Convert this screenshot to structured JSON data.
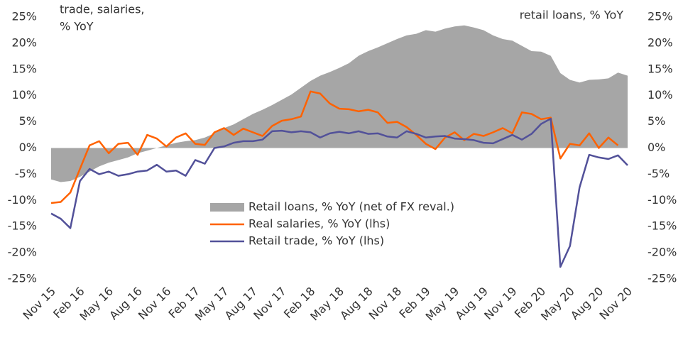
{
  "chart_data": {
    "type": "line",
    "left_axis_label": [
      "trade, salaries,",
      "% YoY"
    ],
    "right_axis_label": "retail loans, % YoY",
    "categories": [
      "Nov 15",
      null,
      null,
      "Feb 16",
      null,
      null,
      "May 16",
      null,
      null,
      "Aug 16",
      null,
      null,
      "Nov 16",
      null,
      null,
      "Feb 17",
      null,
      null,
      "May 17",
      null,
      null,
      "Aug 17",
      null,
      null,
      "Nov 17",
      null,
      null,
      "Feb 18",
      null,
      null,
      "May 18",
      null,
      null,
      "Aug 18",
      null,
      null,
      "Nov 18",
      null,
      null,
      "Feb 19",
      null,
      null,
      "May 19",
      null,
      null,
      "Aug 19",
      null,
      null,
      "Nov 19",
      null,
      null,
      "Feb 20",
      null,
      null,
      "May 20",
      null,
      null,
      "Aug 20",
      null,
      null,
      "Nov 20"
    ],
    "series": [
      {
        "name": "Retail loans, % YoY (net of FX reval.)",
        "color": "#a6a6a6",
        "kind": "area",
        "axis": "y2",
        "values": [
          -6,
          -6.5,
          -6.3,
          -5.5,
          -4.5,
          -3.5,
          -2.8,
          -2.3,
          -1.8,
          -1,
          -0.5,
          0,
          0.5,
          1,
          1.3,
          1.5,
          2,
          2.8,
          3.8,
          4.5,
          5.5,
          6.5,
          7.3,
          8.2,
          9.2,
          10.2,
          11.5,
          12.8,
          13.8,
          14.5,
          15.3,
          16.2,
          17.6,
          18.5,
          19.2,
          20,
          20.8,
          21.5,
          21.8,
          22.5,
          22.2,
          22.8,
          23.2,
          23.4,
          23,
          22.5,
          21.5,
          20.8,
          20.5,
          19.5,
          18.5,
          18.4,
          17.6,
          14.3,
          13,
          12.5,
          13,
          13.1,
          13.3,
          14.4,
          13.8
        ]
      },
      {
        "name": "Real salaries, % YoY (lhs)",
        "color": "#ff6200",
        "kind": "line",
        "values": [
          -10.5,
          -10.3,
          -8.5,
          -4,
          0.5,
          1.3,
          -1,
          0.8,
          1,
          -1.3,
          2.5,
          1.8,
          0.3,
          2,
          2.8,
          0.8,
          0.6,
          3,
          3.8,
          2.5,
          3.7,
          3,
          2.3,
          4.2,
          5.2,
          5.5,
          6,
          10.8,
          10.4,
          8.5,
          7.5,
          7.4,
          7,
          7.3,
          6.8,
          4.8,
          5,
          4,
          2.5,
          0.8,
          -0.2,
          2,
          3,
          1.5,
          2.7,
          2.3,
          3,
          3.8,
          2.8,
          6.8,
          6.5,
          5.5,
          5.8,
          -2,
          0.8,
          0.5,
          2.8,
          0,
          2,
          0.5,
          null
        ]
      },
      {
        "name": "Retail trade, % YoY (lhs)",
        "color": "#525199",
        "kind": "line",
        "values": [
          -12.5,
          -13.5,
          -15.3,
          -6.3,
          -4,
          -5,
          -4.5,
          -5.3,
          -5,
          -4.5,
          -4.3,
          -3.2,
          -4.5,
          -4.3,
          -5.3,
          -2.3,
          -3,
          0,
          0.3,
          1,
          1.3,
          1.3,
          1.6,
          3.2,
          3.3,
          3,
          3.2,
          3,
          2,
          2.8,
          3.1,
          2.8,
          3.2,
          2.7,
          2.8,
          2.2,
          2,
          3.2,
          2.7,
          2,
          2.2,
          2.3,
          1.8,
          1.7,
          1.5,
          1,
          0.9,
          1.7,
          2.5,
          1.6,
          2.7,
          4.6,
          5.6,
          -22.7,
          -18.7,
          -7.5,
          -1.3,
          -1.8,
          -2.1,
          -1.4,
          -3.3
        ]
      }
    ],
    "ylim": [
      -25,
      25
    ],
    "yticks": [
      {
        "value": -25,
        "label": "-25%"
      },
      {
        "value": -20,
        "label": "-20%"
      },
      {
        "value": -15,
        "label": "-15%"
      },
      {
        "value": -10,
        "label": "-10%"
      },
      {
        "value": -5,
        "label": "-5%"
      },
      {
        "value": 0,
        "label": "0%"
      },
      {
        "value": 5,
        "label": "5%"
      },
      {
        "value": 10,
        "label": "10%"
      },
      {
        "value": 15,
        "label": "15%"
      },
      {
        "value": 20,
        "label": "20%"
      },
      {
        "value": 25,
        "label": "25%"
      }
    ],
    "y2lim": [
      -25,
      25
    ],
    "y2ticks": [
      {
        "value": -25,
        "label": "-25%"
      },
      {
        "value": -20,
        "label": "-20%"
      },
      {
        "value": -15,
        "label": "-15%"
      },
      {
        "value": -10,
        "label": "-10%"
      },
      {
        "value": -5,
        "label": "-5%"
      },
      {
        "value": 0,
        "label": "0%"
      },
      {
        "value": 5,
        "label": "5%"
      },
      {
        "value": 10,
        "label": "10%"
      },
      {
        "value": 15,
        "label": "15%"
      },
      {
        "value": 20,
        "label": "20%"
      },
      {
        "value": 25,
        "label": "25%"
      }
    ],
    "grid": false
  }
}
